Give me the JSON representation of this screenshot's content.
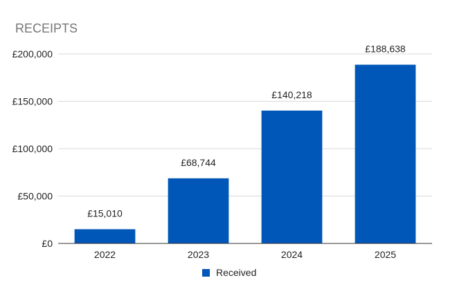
{
  "chart_data": {
    "type": "bar",
    "title": "RECEIPTS",
    "xlabel": "",
    "ylabel": "",
    "categories": [
      "2022",
      "2023",
      "2024",
      "2025"
    ],
    "series": [
      {
        "name": "Received",
        "values": [
          15010,
          68744,
          140218,
          188638
        ],
        "labels": [
          "£15,010",
          "£68,744",
          "£140,218",
          "£188,638"
        ]
      }
    ],
    "ylim": [
      0,
      200000
    ],
    "yticks": [
      0,
      50000,
      100000,
      150000,
      200000
    ],
    "ytick_labels": [
      "£0",
      "£50,000",
      "£100,000",
      "£150,000",
      "£200,000"
    ],
    "grid": true,
    "legend_position": "bottom",
    "colors": {
      "bar": "#0057b8",
      "title": "#757575",
      "gridline": "#d9d9d9",
      "axis": "#333333",
      "text": "#222222"
    }
  }
}
